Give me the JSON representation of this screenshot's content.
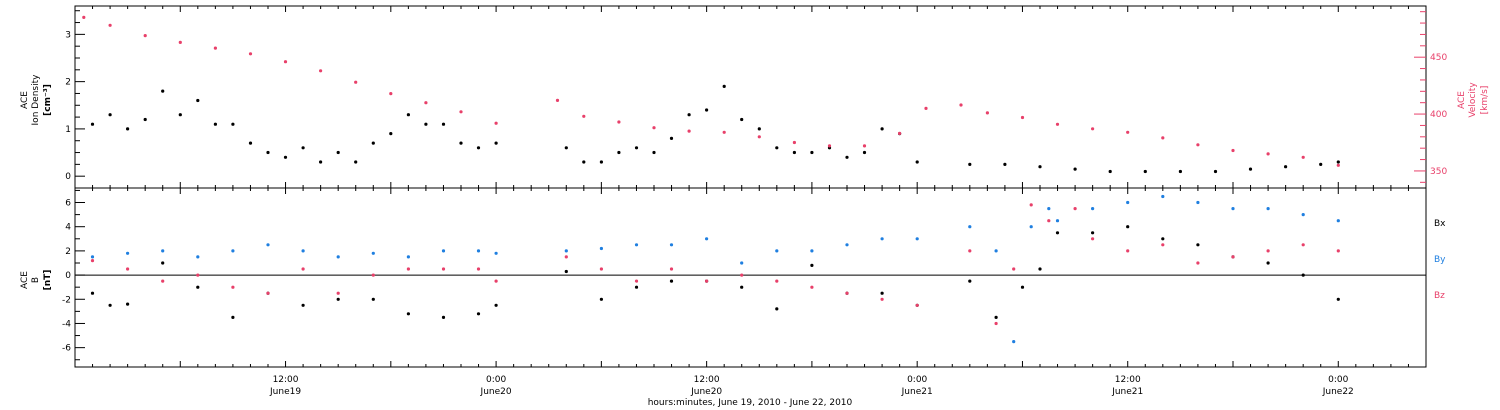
{
  "colors": {
    "black": "#000000",
    "pink": "#e8406a",
    "blue": "#1f7fe0"
  },
  "top_panel": {
    "left_label": [
      "ACE",
      "Ion Density",
      "[cm⁻³]"
    ],
    "right_label": [
      "ACE",
      "Velocity",
      "[km/s]"
    ]
  },
  "bottom_panel": {
    "left_label": [
      "ACE",
      "B",
      "[nT]"
    ],
    "legend": [
      "Bx",
      "By",
      "Bz"
    ]
  },
  "x_axis": {
    "title": "hours:minutes, June 19, 2010 - June 22, 2010"
  },
  "chart_data": [
    {
      "type": "scatter",
      "panel": "top",
      "axes": {
        "left": {
          "label": "ACE Ion Density [cm⁻³]",
          "ylim": [
            -0.25,
            3.6
          ],
          "ticks": [
            0,
            1,
            2,
            3
          ]
        },
        "right": {
          "label": "ACE Velocity [km/s]",
          "ylim": [
            335,
            495
          ],
          "ticks": [
            350,
            400,
            450
          ]
        }
      },
      "x_ticks": [
        {
          "hours": 12,
          "label": [
            "12:00",
            "June19"
          ]
        },
        {
          "hours": 24,
          "label": [
            "0:00",
            "June20"
          ]
        },
        {
          "hours": 36,
          "label": [
            "12:00",
            "June20"
          ]
        },
        {
          "hours": 48,
          "label": [
            "0:00",
            "June21"
          ]
        },
        {
          "hours": 60,
          "label": [
            "12:00",
            "June21"
          ]
        },
        {
          "hours": 72,
          "label": [
            "0:00",
            "June22"
          ]
        }
      ],
      "xlim_hours": [
        0,
        77
      ],
      "series": [
        {
          "name": "Ion Density",
          "axis": "left",
          "color": "#000000",
          "x": [
            1,
            2,
            3,
            4,
            5,
            6,
            7,
            8,
            9,
            10,
            11,
            12,
            13,
            14,
            15,
            16,
            17,
            18,
            19,
            20,
            21,
            22,
            23,
            24,
            28,
            29,
            30,
            31,
            32,
            33,
            34,
            35,
            36,
            37,
            38,
            39,
            40,
            41,
            42,
            43,
            44,
            45,
            46,
            47,
            48,
            51,
            53,
            55,
            57,
            59,
            61,
            63,
            65,
            67,
            69,
            71,
            72
          ],
          "y": [
            1.1,
            1.3,
            1.0,
            1.2,
            1.8,
            1.3,
            1.6,
            1.1,
            1.1,
            0.7,
            0.5,
            0.4,
            0.6,
            0.3,
            0.5,
            0.3,
            0.7,
            0.9,
            1.3,
            1.1,
            1.1,
            0.7,
            0.6,
            0.7,
            0.6,
            0.3,
            0.3,
            0.5,
            0.6,
            0.5,
            0.8,
            1.3,
            1.4,
            1.9,
            1.2,
            1.0,
            0.6,
            0.5,
            0.5,
            0.6,
            0.4,
            0.5,
            1.0,
            0.9,
            0.3,
            0.25,
            0.25,
            0.2,
            0.15,
            0.1,
            0.1,
            0.1,
            0.1,
            0.15,
            0.2,
            0.25,
            0.3
          ]
        },
        {
          "name": "Velocity",
          "axis": "right",
          "color": "#e8406a",
          "x": [
            0.5,
            2,
            4,
            6,
            8,
            10,
            12,
            14,
            16,
            18,
            20,
            22,
            24,
            27.5,
            29,
            31,
            33,
            35,
            37,
            39,
            41,
            43,
            45,
            47,
            48.5,
            50.5,
            52,
            54,
            56,
            58,
            60,
            62,
            64,
            66,
            68,
            70,
            72
          ],
          "y": [
            485,
            478,
            469,
            463,
            458,
            453,
            446,
            438,
            428,
            418,
            410,
            402,
            392,
            412,
            398,
            393,
            388,
            385,
            384,
            380,
            375,
            372,
            372,
            383,
            405,
            408,
            401,
            397,
            391,
            387,
            384,
            379,
            373,
            368,
            365,
            362,
            355
          ]
        }
      ]
    },
    {
      "type": "scatter",
      "panel": "bottom",
      "axes": {
        "left": {
          "label": "ACE B [nT]",
          "ylim": [
            -7.6,
            7.2
          ],
          "ticks": [
            -6,
            -4,
            -2,
            0,
            2,
            4,
            6
          ]
        }
      },
      "xlim_hours": [
        0,
        77
      ],
      "series": [
        {
          "name": "Bx",
          "color": "#000000",
          "x": [
            1,
            2,
            3,
            5,
            7,
            9,
            11,
            13,
            15,
            17,
            19,
            21,
            23,
            24,
            28,
            30,
            32,
            34,
            36,
            38,
            40,
            42,
            44,
            46,
            48,
            51,
            52.5,
            54,
            55,
            56,
            58,
            60,
            62,
            64,
            66,
            68,
            70,
            72
          ],
          "y": [
            -1.5,
            -2.5,
            -2.4,
            1.0,
            -1.0,
            -3.5,
            -1.5,
            -2.5,
            -2.0,
            -2.0,
            -3.2,
            -3.5,
            -3.2,
            -2.5,
            0.3,
            -2.0,
            -1.0,
            -0.5,
            -0.5,
            -1.0,
            -2.8,
            0.8,
            -1.5,
            -1.5,
            -2.5,
            -0.5,
            -3.5,
            -1.0,
            0.5,
            3.5,
            3.5,
            4.0,
            3.0,
            2.5,
            1.5,
            1.0,
            0.0,
            -2.0
          ]
        },
        {
          "name": "By",
          "color": "#1f7fe0",
          "x": [
            1,
            3,
            5,
            7,
            9,
            11,
            13,
            15,
            17,
            19,
            21,
            23,
            24,
            28,
            30,
            32,
            34,
            36,
            38,
            40,
            42,
            44,
            46,
            48,
            51,
            52.5,
            53.5,
            54.5,
            55.5,
            56,
            58,
            60,
            62,
            64,
            66,
            68,
            70,
            72
          ],
          "y": [
            1.5,
            1.8,
            2.0,
            1.5,
            2.0,
            2.5,
            2.0,
            1.5,
            1.8,
            1.5,
            2.0,
            2.0,
            1.8,
            2.0,
            2.2,
            2.5,
            2.5,
            3.0,
            1.0,
            2.0,
            2.0,
            2.5,
            3.0,
            3.0,
            4.0,
            2.0,
            -5.5,
            4.0,
            5.5,
            4.5,
            5.5,
            6.0,
            6.5,
            6.0,
            5.5,
            5.5,
            5.0,
            4.5
          ]
        },
        {
          "name": "Bz",
          "color": "#e8406a",
          "x": [
            1,
            3,
            5,
            7,
            9,
            11,
            13,
            15,
            17,
            19,
            21,
            23,
            24,
            28,
            30,
            32,
            34,
            36,
            38,
            40,
            42,
            44,
            46,
            48,
            51,
            52.5,
            53.5,
            54.5,
            55.5,
            57,
            58,
            60,
            62,
            64,
            66,
            68,
            70,
            72
          ],
          "y": [
            1.2,
            0.5,
            -0.5,
            0.0,
            -1.0,
            -1.5,
            0.5,
            -1.5,
            0.0,
            0.5,
            0.5,
            0.5,
            -0.5,
            1.5,
            0.5,
            -0.5,
            0.5,
            -0.5,
            0.0,
            -0.5,
            -1.0,
            -1.5,
            -2.0,
            -2.5,
            2.0,
            -4.0,
            0.5,
            5.8,
            4.5,
            5.5,
            3.0,
            2.0,
            2.5,
            1.0,
            1.5,
            2.0,
            2.5,
            2.0
          ]
        }
      ]
    }
  ]
}
